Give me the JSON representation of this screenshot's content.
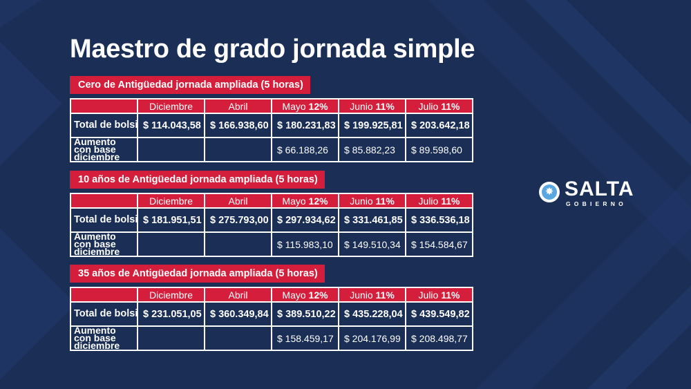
{
  "title": "Maestro de grado jornada simple",
  "colors": {
    "background": "#1b2e56",
    "accent": "#d51e3b",
    "text": "#ffffff"
  },
  "logo": {
    "word": "SALTA",
    "sub": "GOBIERNO",
    "icon": "star-emblem-icon"
  },
  "tables": [
    {
      "label": "Cero de Antigüedad jornada ampliada (5 horas)",
      "headers": [
        {
          "text": "Diciembre",
          "pct": ""
        },
        {
          "text": "Abril",
          "pct": ""
        },
        {
          "text": "Mayo",
          "pct": "12%"
        },
        {
          "text": "Junio",
          "pct": "11%"
        },
        {
          "text": "Julio",
          "pct": "11%"
        }
      ],
      "rows": [
        {
          "label": "Total de bolsillo",
          "values": [
            "$ 114.043,58",
            "$ 166.938,60",
            "$ 180.231,83",
            "$ 199.925,81",
            "$ 203.642,18"
          ]
        },
        {
          "label": "Aumento con base diciembre",
          "values": [
            "",
            "",
            "$ 66.188,26",
            "$ 85.882,23",
            "$ 89.598,60"
          ]
        }
      ]
    },
    {
      "label": "10 años de Antigüedad jornada ampliada (5 horas)",
      "headers": [
        {
          "text": "Diciembre",
          "pct": ""
        },
        {
          "text": "Abril",
          "pct": ""
        },
        {
          "text": "Mayo",
          "pct": "12%"
        },
        {
          "text": "Junio",
          "pct": "11%"
        },
        {
          "text": "Julio",
          "pct": "11%"
        }
      ],
      "rows": [
        {
          "label": "Total de bolsillo",
          "values": [
            "$ 181.951,51",
            "$ 275.793,00",
            "$ 297.934,62",
            "$ 331.461,85",
            "$ 336.536,18"
          ]
        },
        {
          "label": "Aumento con base diciembre",
          "values": [
            "",
            "",
            "$ 115.983,10",
            "$ 149.510,34",
            "$ 154.584,67"
          ]
        }
      ]
    },
    {
      "label": "35 años de Antigüedad jornada ampliada (5 horas)",
      "headers": [
        {
          "text": "Diciembre",
          "pct": ""
        },
        {
          "text": "Abril",
          "pct": ""
        },
        {
          "text": "Mayo",
          "pct": "12%"
        },
        {
          "text": "Junio",
          "pct": "11%"
        },
        {
          "text": "Julio",
          "pct": "11%"
        }
      ],
      "rows": [
        {
          "label": "Total de bolsillo",
          "values": [
            "$ 231.051,05",
            "$ 360.349,84",
            "$ 389.510,22",
            "$ 435.228,04",
            "$ 439.549,82"
          ]
        },
        {
          "label": "Aumento con base diciembre",
          "values": [
            "",
            "",
            "$ 158.459,17",
            "$ 204.176,99",
            "$ 208.498,77"
          ]
        }
      ]
    }
  ]
}
